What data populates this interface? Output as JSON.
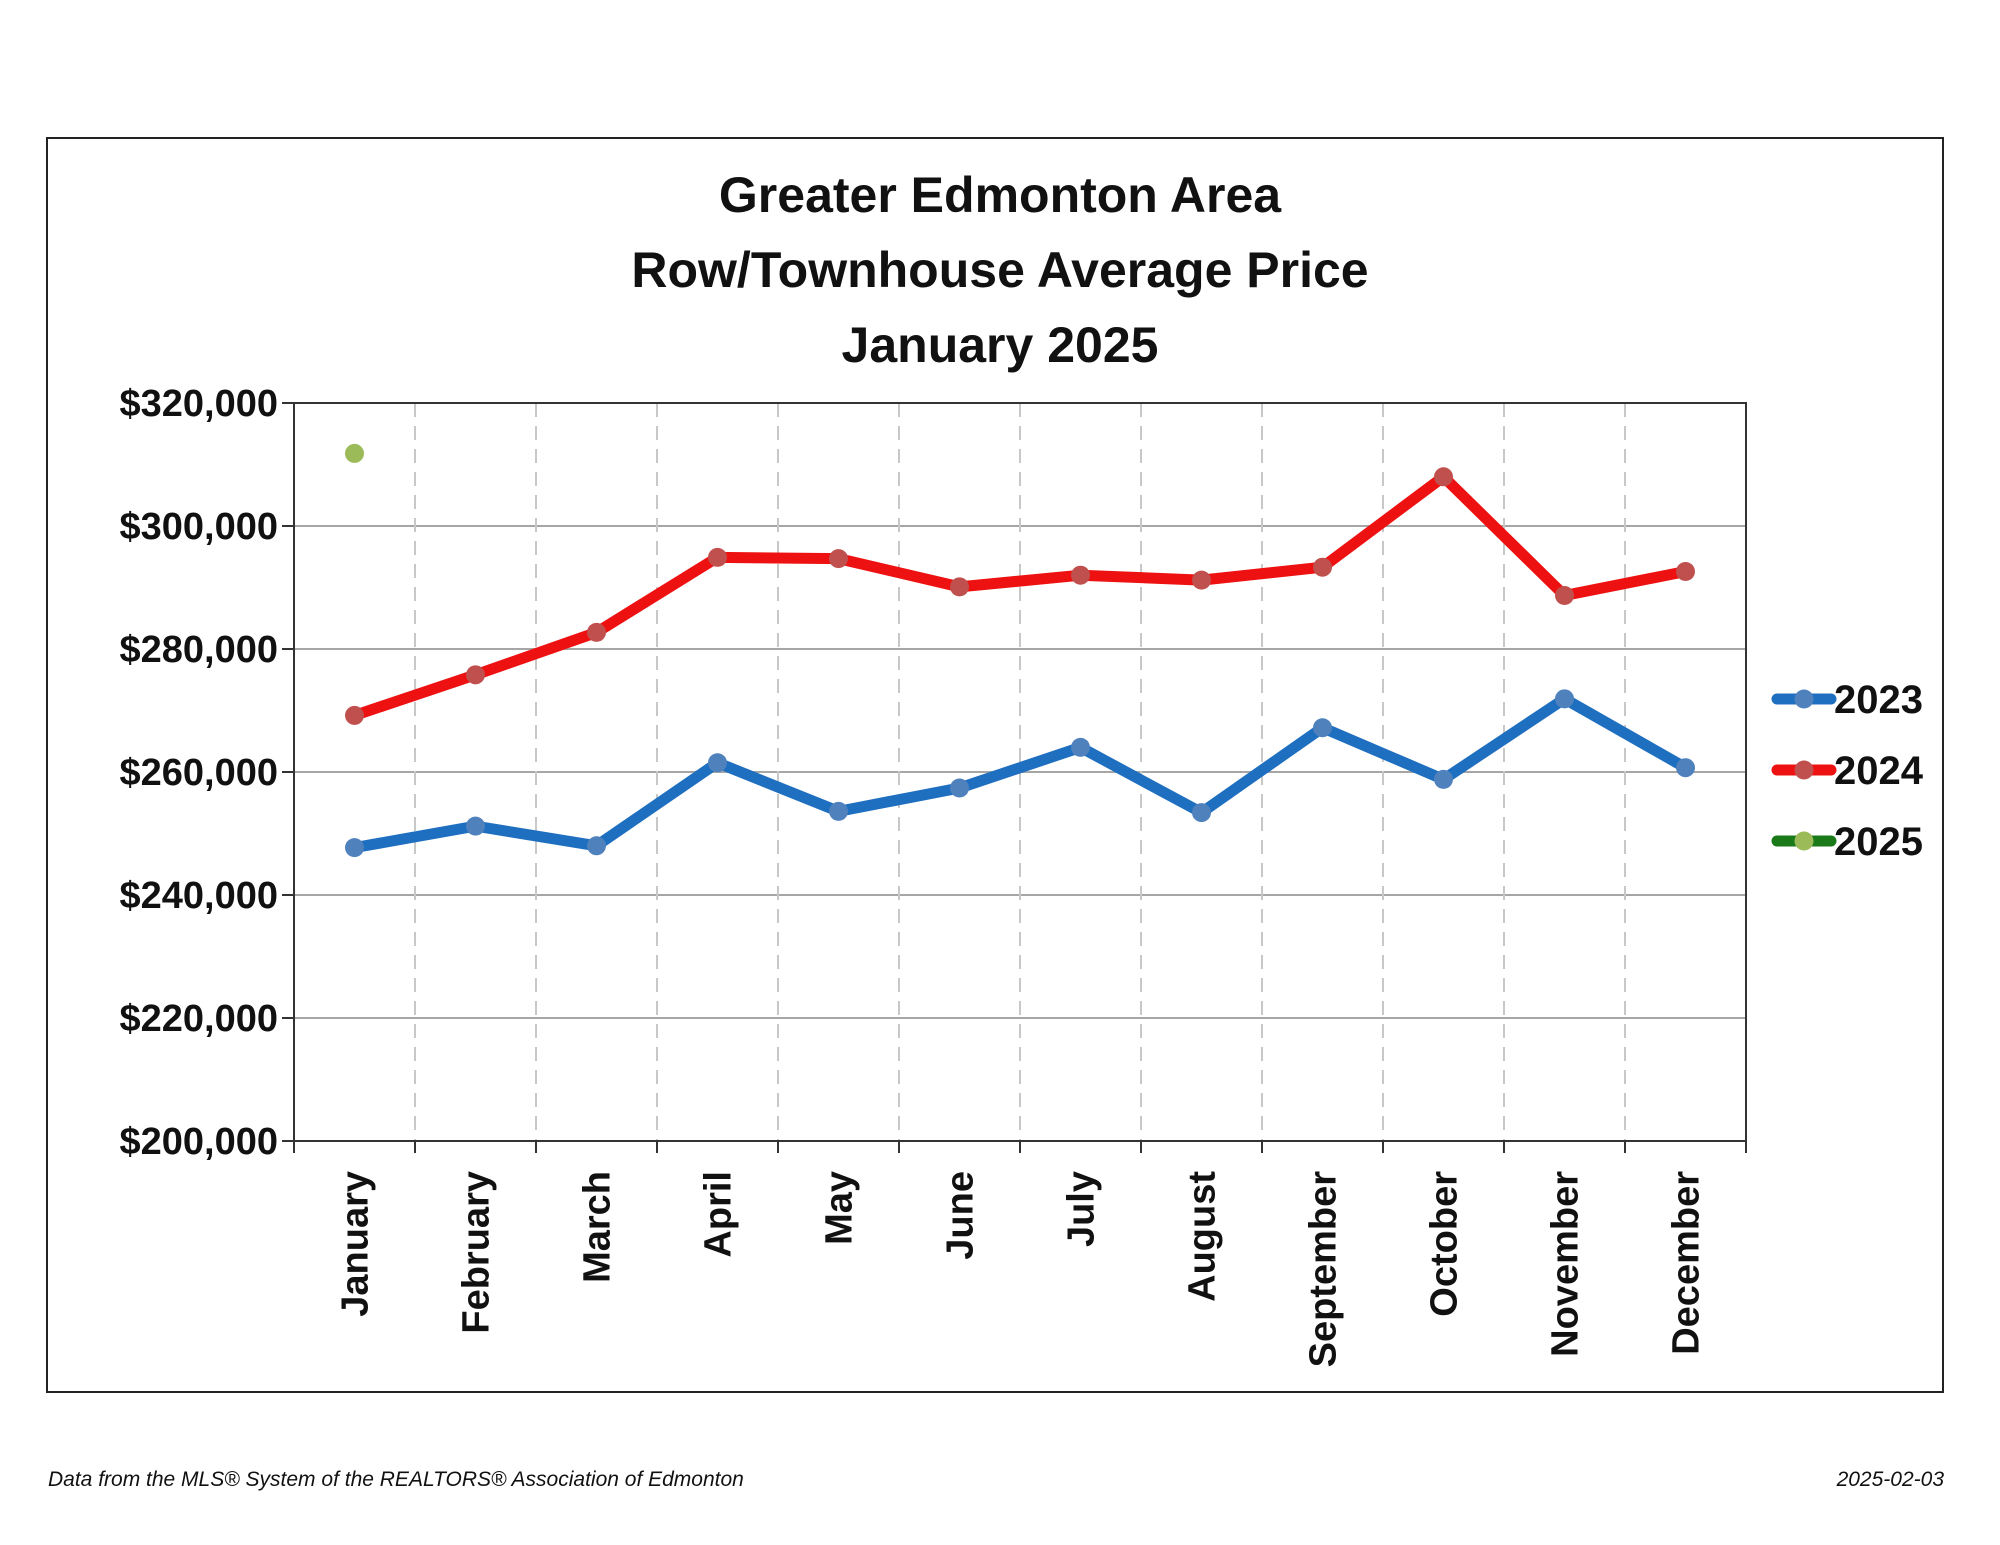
{
  "footer": {
    "source": "Data from the MLS® System of the REALTORS® Association of Edmonton",
    "date": "2025-02-03"
  },
  "chart_data": {
    "type": "line",
    "title": [
      "Greater Edmonton Area",
      "Row/Townhouse Average Price",
      "January 2025"
    ],
    "categories": [
      "January",
      "February",
      "March",
      "April",
      "May",
      "June",
      "July",
      "August",
      "September",
      "October",
      "November",
      "December"
    ],
    "ylim": [
      200000,
      320000
    ],
    "yticks": [
      200000,
      220000,
      240000,
      260000,
      280000,
      300000,
      320000
    ],
    "ytick_labels": [
      "$200,000",
      "$220,000",
      "$240,000",
      "$260,000",
      "$280,000",
      "$300,000",
      "$320,000"
    ],
    "grid": {
      "horizontal": true,
      "vertical_dashed": true
    },
    "legend_position": "right",
    "series": [
      {
        "name": "2023",
        "color": "#1f6fc0",
        "marker_color": "#4f81bd",
        "values": [
          247700,
          251200,
          248000,
          261500,
          253600,
          257400,
          264000,
          253400,
          267200,
          258800,
          271900,
          260700
        ]
      },
      {
        "name": "2024",
        "color": "#ee1111",
        "marker_color": "#c0504d",
        "values": [
          269200,
          275800,
          282700,
          294900,
          294700,
          290100,
          292000,
          291200,
          293300,
          308000,
          288700,
          292600
        ]
      },
      {
        "name": "2025",
        "color": "#1a7a1a",
        "marker_color": "#9bbb59",
        "values": [
          311800,
          null,
          null,
          null,
          null,
          null,
          null,
          null,
          null,
          null,
          null,
          null
        ]
      }
    ]
  }
}
